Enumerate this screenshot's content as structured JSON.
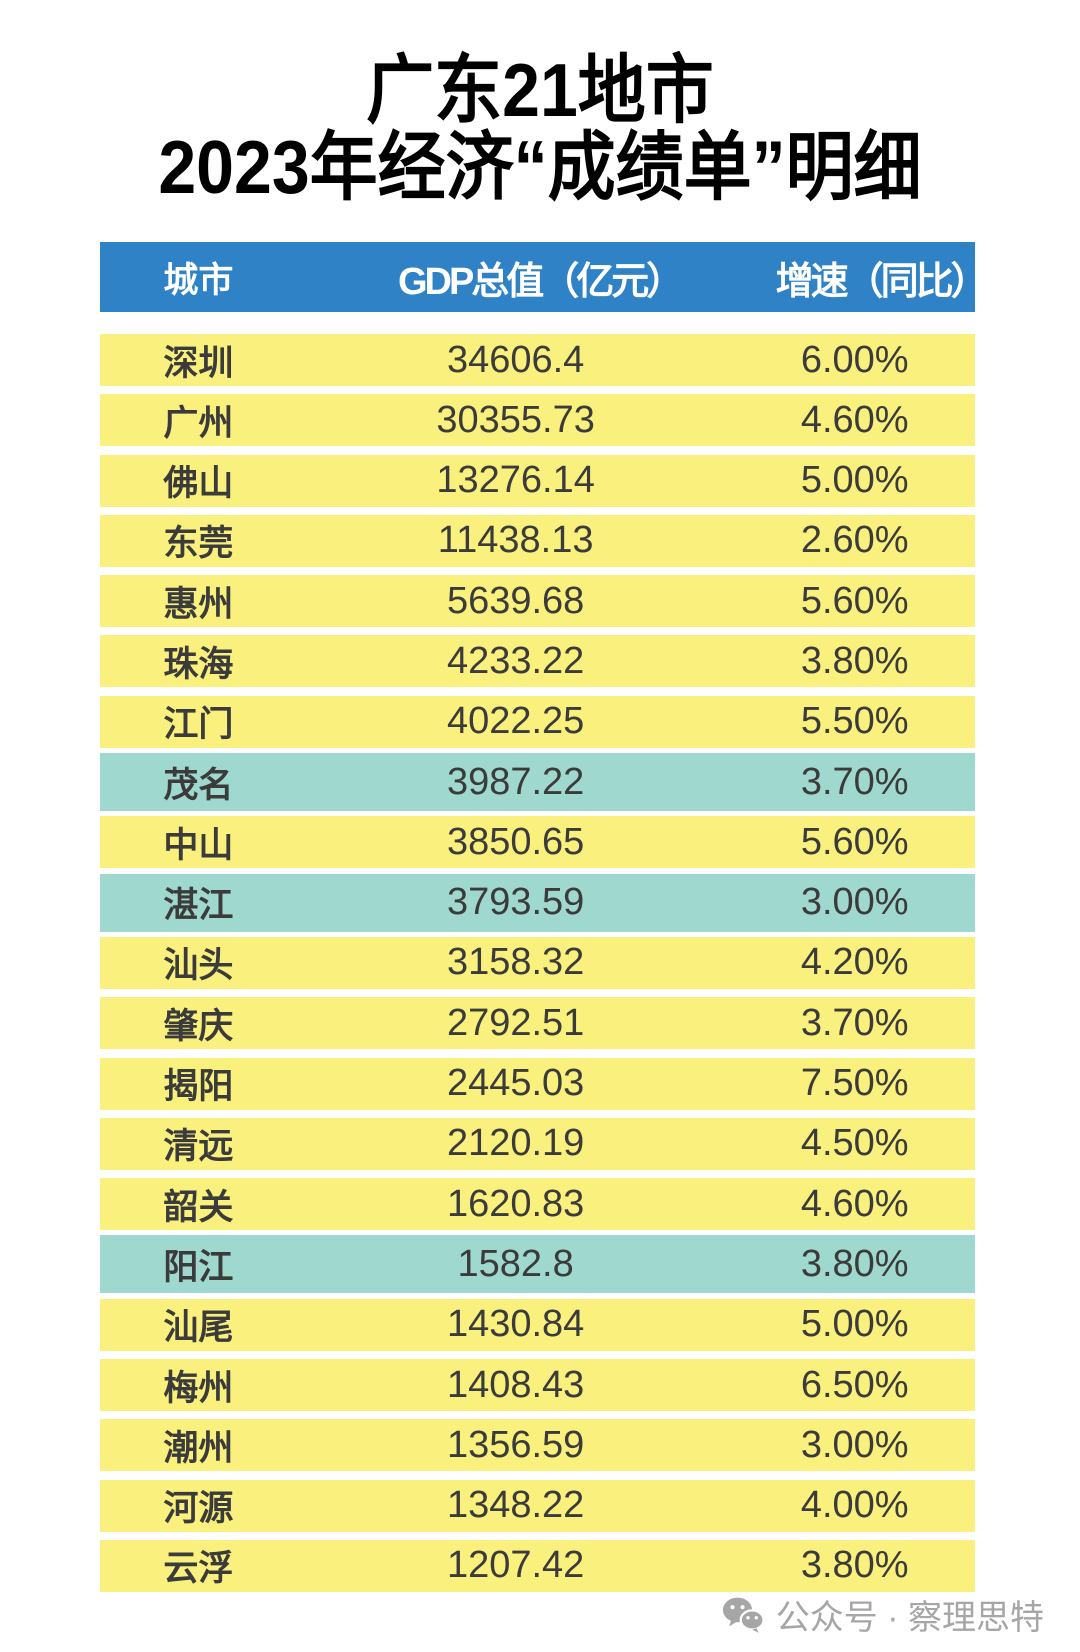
{
  "title": {
    "line1": "广东21地市",
    "line2": "2023年经济“成绩单”明细"
  },
  "chart_data": {
    "type": "table",
    "title": "广东21地市 2023年经济“成绩单”明细",
    "columns": [
      "城市",
      "GDP总值（亿元）",
      "增速（同比）"
    ],
    "rows": [
      [
        "深圳",
        "34606.4",
        "6.00%"
      ],
      [
        "广州",
        "30355.73",
        "4.60%"
      ],
      [
        "佛山",
        "13276.14",
        "5.00%"
      ],
      [
        "东莞",
        "11438.13",
        "2.60%"
      ],
      [
        "惠州",
        "5639.68",
        "5.60%"
      ],
      [
        "珠海",
        "4233.22",
        "3.80%"
      ],
      [
        "江门",
        "4022.25",
        "5.50%"
      ],
      [
        "茂名",
        "3987.22",
        "3.70%"
      ],
      [
        "中山",
        "3850.65",
        "5.60%"
      ],
      [
        "湛江",
        "3793.59",
        "3.00%"
      ],
      [
        "汕头",
        "3158.32",
        "4.20%"
      ],
      [
        "肇庆",
        "2792.51",
        "3.70%"
      ],
      [
        "揭阳",
        "2445.03",
        "7.50%"
      ],
      [
        "清远",
        "2120.19",
        "4.50%"
      ],
      [
        "韶关",
        "1620.83",
        "4.60%"
      ],
      [
        "阳江",
        "1582.8",
        "3.80%"
      ],
      [
        "汕尾",
        "1430.84",
        "5.00%"
      ],
      [
        "梅州",
        "1408.43",
        "6.50%"
      ],
      [
        "潮州",
        "1356.59",
        "3.00%"
      ],
      [
        "河源",
        "1348.22",
        "4.00%"
      ],
      [
        "云浮",
        "1207.42",
        "3.80%"
      ]
    ],
    "highlighted_rows": [
      "茂名",
      "湛江",
      "阳江"
    ],
    "legend_position": "none",
    "grid": false
  },
  "colors": {
    "header_bg": "#2e82c5",
    "header_text": "#ffffff",
    "row_yellow": "#f9f07e",
    "row_teal": "#9fd8cf",
    "row_text": "#3b3b3b",
    "title_text": "#000000",
    "watermark_gray": "#a6a6a6"
  },
  "footer": {
    "icon": "wechat-icon",
    "text": "公众号 · 察理思特"
  }
}
